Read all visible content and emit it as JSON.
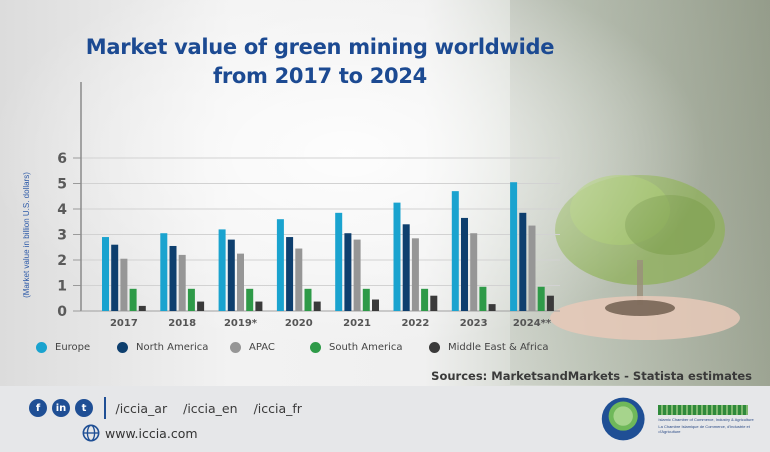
{
  "title_lines": [
    "Market value of green mining worldwide",
    "from 2017 to 2024"
  ],
  "chart_data": {
    "type": "bar",
    "title": "Market value of green mining worldwide from 2017 to 2024",
    "xlabel": "",
    "ylabel": "(Market value in billion U.S. dollars)",
    "ylim": [
      0,
      6
    ],
    "yticks": [
      0,
      1,
      2,
      3,
      4,
      5,
      6
    ],
    "grid": true,
    "legend_position": "bottom",
    "categories": [
      "2017",
      "2018",
      "2019*",
      "2020",
      "2021",
      "2022",
      "2023",
      "2024**"
    ],
    "series": [
      {
        "name": "Europe",
        "color": "#1aa3cf",
        "values": [
          2.9,
          3.05,
          3.2,
          3.6,
          3.85,
          4.25,
          4.7,
          5.05
        ]
      },
      {
        "name": "North America",
        "color": "#0e3f6e",
        "values": [
          2.6,
          2.55,
          2.8,
          2.9,
          3.05,
          3.4,
          3.65,
          3.85
        ]
      },
      {
        "name": "APAC",
        "color": "#969696",
        "values": [
          2.05,
          2.2,
          2.25,
          2.45,
          2.8,
          2.85,
          3.05,
          3.35
        ]
      },
      {
        "name": "South America",
        "color": "#2e9a48",
        "values": [
          0.87,
          0.87,
          0.87,
          0.87,
          0.87,
          0.87,
          0.95,
          0.95
        ]
      },
      {
        "name": "Middle East & Africa",
        "color": "#3a3a3a",
        "values": [
          0.2,
          0.37,
          0.37,
          0.37,
          0.45,
          0.6,
          0.27,
          0.6
        ]
      }
    ]
  },
  "source": "Sources: MarketsandMarkets - Statista estimates",
  "footer": {
    "social_icons": [
      {
        "name": "facebook",
        "glyph": "f"
      },
      {
        "name": "linkedin",
        "glyph": "in"
      },
      {
        "name": "twitter",
        "glyph": "t"
      }
    ],
    "handles": [
      "/iccia_ar",
      "/iccia_en",
      "/iccia_fr"
    ],
    "website": "www.iccia.com",
    "logo_en_text": "Islamic Chamber of Commerce, Industry & Agriculture",
    "logo_fr_text": "La Chambre Islamique de Commerce, d'Industrie et d'Agriculture"
  },
  "colors": {
    "title": "#1c4a92",
    "footer_bg": "#e6e7e9",
    "brand_blue": "#1f4f95"
  }
}
